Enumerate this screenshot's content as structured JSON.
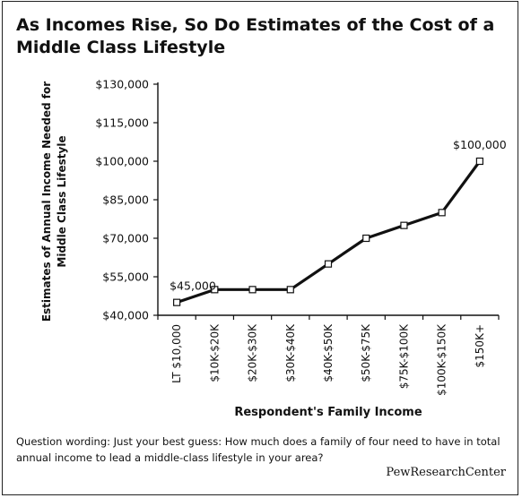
{
  "title": "As Incomes Rise, So Do Estimates of the Cost of a Middle Class Lifestyle",
  "footnote": "Question wording: Just your best guess: How much does a family of four need to have in total annual income to lead a middle-class lifestyle in your area?",
  "source": "PewResearchCenter",
  "chart_data": {
    "type": "line",
    "categories": [
      "LT $10,000",
      "$10K-$20K",
      "$20K-$30K",
      "$30K-$40K",
      "$40K-$50K",
      "$50K-$75K",
      "$75K-$100K",
      "$100K-$150K",
      "$150K+"
    ],
    "series": [
      {
        "values": [
          45000,
          50000,
          50000,
          50000,
          60000,
          70000,
          75000,
          80000,
          100000
        ]
      }
    ],
    "xlabel": "Respondent's Family Income",
    "ylabel": "Estimates of Annual Income Needed for Middle Class Lifestyle",
    "ylim": [
      40000,
      130000
    ],
    "yticks": [
      40000,
      55000,
      70000,
      85000,
      100000,
      115000,
      130000
    ],
    "ytick_labels": [
      "$40,000",
      "$55,000",
      "$70,000",
      "$85,000",
      "$100,000",
      "$115,000",
      "$130,000"
    ],
    "annotations": [
      {
        "index": 0,
        "text": "$45,000"
      },
      {
        "index": 8,
        "text": "$100,000"
      }
    ],
    "line_color": "#111111",
    "grid": false
  }
}
